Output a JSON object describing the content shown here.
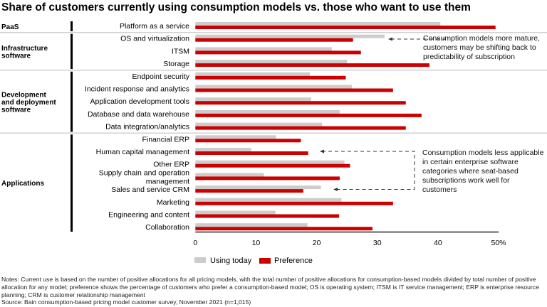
{
  "chart_data": {
    "type": "bar",
    "orientation": "horizontal",
    "title": "Share of customers currently using consumption models vs. those who want to use them",
    "groups": [
      {
        "name": "PaaS",
        "categories": [
          "Platform as a service"
        ]
      },
      {
        "name": "Infrastructure software",
        "categories": [
          "OS and virtualization",
          "ITSM",
          "Storage"
        ]
      },
      {
        "name": "Development and deployment software",
        "categories": [
          "Endpoint security",
          "Incident response and analytics",
          "Application development tools",
          "Database and data warehouse",
          "Data integration/analytics"
        ]
      },
      {
        "name": "Applications",
        "categories": [
          "Financial ERP",
          "Human capital management",
          "Other ERP",
          "Supply chain and operation management",
          "Sales and service CRM",
          "Marketing",
          "Engineering and content",
          "Collaboration"
        ]
      }
    ],
    "categories": [
      "Platform as a service",
      "OS and virtualization",
      "ITSM",
      "Storage",
      "Endpoint security",
      "Incident response and analytics",
      "Application development tools",
      "Database and data warehouse",
      "Data integration/analytics",
      "Financial ERP",
      "Human capital management",
      "Other ERP",
      "Supply chain and operation management",
      "Sales and service CRM",
      "Marketing",
      "Engineering and content",
      "Collaboration"
    ],
    "series": [
      {
        "name": "Using today",
        "color": "#cccccc",
        "values": [
          40.4,
          31.2,
          22.5,
          25.0,
          18.9,
          25.8,
          19.1,
          23.8,
          20.9,
          13.3,
          9.2,
          24.6,
          11.3,
          20.7,
          24.1,
          13.2,
          18.5
        ]
      },
      {
        "name": "Preference",
        "color": "#cc0000",
        "values": [
          49.5,
          26.0,
          27.3,
          38.6,
          24.8,
          32.6,
          34.7,
          37.3,
          34.7,
          17.4,
          18.6,
          25.5,
          23.8,
          17.8,
          32.6,
          23.7,
          29.2
        ]
      }
    ],
    "xlim": [
      0,
      50
    ],
    "xticks": [
      "0",
      "10",
      "20",
      "30",
      "40",
      "50%"
    ],
    "grid": false,
    "legend": "bottom",
    "annotations": [
      "Consumption models more mature, customers may be shifting back to predictability of subscription",
      "Consumption models less applicable in certain enterprise software categories where seat-based subscriptions work well for customers"
    ]
  },
  "notes": "Notes: Current use is based on the number of positive allocations for all pricing models, with the total number of positive allocations for consumption-based models divided by total number of positive allocation for any model; preference shows the percentage of customers who prefer a consumption-based model; OS is operating system; ITSM is IT service management; ERP is enterprise resource planning; CRM is customer relationship management",
  "source": "Source: Bain consumption-based pricing model customer survey, November 2021 (n=1,015)"
}
